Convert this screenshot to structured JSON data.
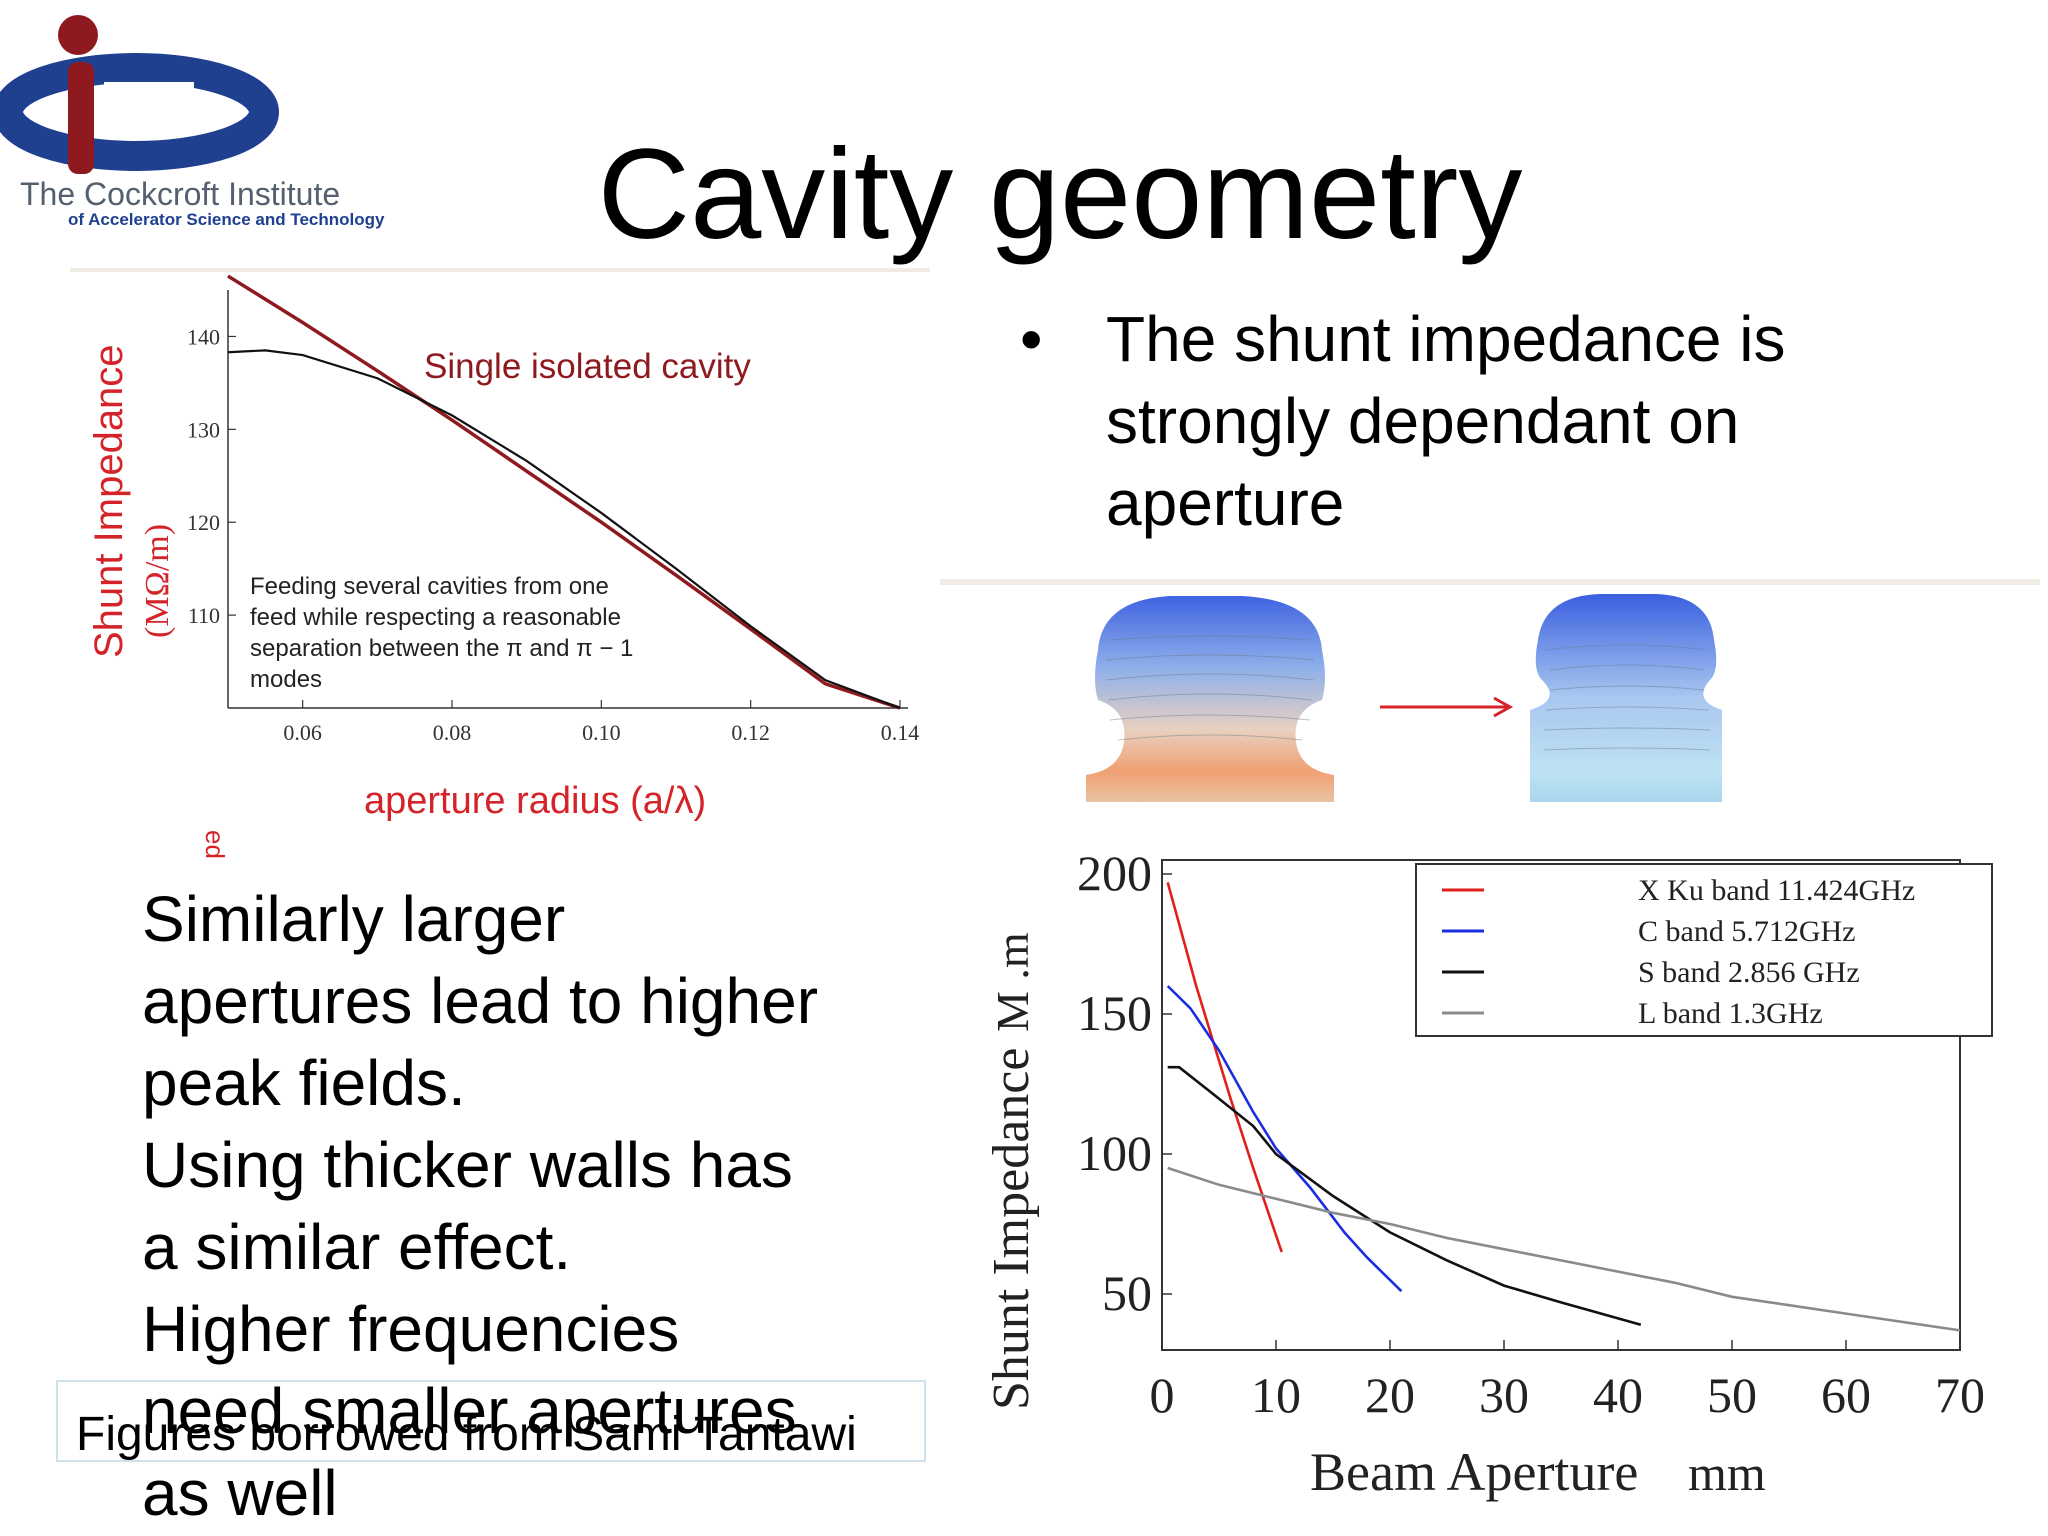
{
  "slide": {
    "title": "Cavity geometry",
    "bullet": "The shunt impedance is strongly dependant on aperture",
    "left_text_lines": [
      "Similarly larger",
      "apertures lead to higher",
      "peak fields.",
      "Using thicker walls has",
      "a similar effect.",
      "Higher frequencies",
      "need smaller apertures",
      "as well"
    ],
    "caption": "Figures borrowed from Sami Tantawi",
    "stray_fragment": "ed"
  },
  "logo": {
    "name": "The Cockcroft Institute",
    "subtitle": "of Accelerator Science and Technology"
  },
  "colors": {
    "accent_red": "#d4242a",
    "logo_blue": "#1f3f8f",
    "logo_red": "#8e1a1f",
    "axis_red": "#d4242a"
  },
  "diagram": {
    "arrow_icon": "right-arrow"
  },
  "chart_data": [
    {
      "type": "line",
      "xlabel": "aperture radius (a/λ)",
      "ylabel": "Shunt Impedance",
      "ylabel_unit": "(MΩ/m)",
      "xlim": [
        0.05,
        0.14
      ],
      "ylim": [
        100,
        145
      ],
      "x_ticks": [
        "0.06",
        "0.08",
        "0.10",
        "0.12",
        "0.14"
      ],
      "y_ticks": [
        "110",
        "120",
        "130",
        "140"
      ],
      "annotations": [
        "Single isolated cavity",
        "Feeding several cavities from one",
        "feed while respecting a reasonable",
        "separation between the π and π − 1",
        "modes"
      ],
      "series": [
        {
          "color": "#8e1a1f",
          "x": [
            0.05,
            0.06,
            0.07,
            0.08,
            0.09,
            0.1,
            0.11,
            0.12,
            0.13,
            0.14
          ],
          "y": [
            146.5,
            141.5,
            136.3,
            131,
            125.5,
            120,
            114.3,
            108.5,
            102.6,
            100
          ]
        },
        {
          "color": "#111111",
          "x": [
            0.05,
            0.055,
            0.06,
            0.07,
            0.08,
            0.09,
            0.1,
            0.11,
            0.12,
            0.13,
            0.14
          ],
          "y": [
            138.3,
            138.5,
            138,
            135.5,
            131.5,
            126.6,
            121,
            115,
            108.8,
            103,
            100
          ]
        }
      ]
    },
    {
      "type": "line",
      "xlabel": "Beam Aperture",
      "xlabel_unit": "mm",
      "ylabel": "Shunt Impedance",
      "ylabel_unit": "M  .m",
      "xlim": [
        0,
        70
      ],
      "ylim": [
        30,
        205
      ],
      "x_ticks": [
        "0",
        "10",
        "20",
        "30",
        "40",
        "50",
        "60",
        "70"
      ],
      "y_ticks": [
        "50",
        "100",
        "150",
        "200"
      ],
      "legend_position": "top-right",
      "series": [
        {
          "name": "X Ku  band 11.424GHz",
          "color": "#e0201c",
          "x": [
            0.5,
            3,
            6,
            8,
            10.5
          ],
          "y": [
            197,
            160,
            120,
            95,
            65
          ]
        },
        {
          "name": "C  band 5.712GHz",
          "color": "#1a2ee0",
          "x": [
            0.5,
            2.5,
            5,
            8,
            10,
            13,
            16,
            18,
            21
          ],
          "y": [
            160,
            152,
            137,
            115,
            102,
            88,
            72,
            63,
            51
          ]
        },
        {
          "name": "S  band 2.856 GHz",
          "color": "#111111",
          "x": [
            0.5,
            1.5,
            4,
            8,
            10,
            15,
            20,
            25,
            30,
            35,
            42
          ],
          "y": [
            131,
            131,
            123,
            110,
            100,
            85,
            72,
            62,
            53,
            47,
            39
          ]
        },
        {
          "name": "L  band 1.3GHz",
          "color": "#8a8a8a",
          "x": [
            0.5,
            5,
            10,
            15,
            20,
            25,
            30,
            35,
            40,
            45,
            50,
            55,
            60,
            65,
            70
          ],
          "y": [
            95,
            89,
            84,
            79,
            75,
            70,
            66,
            62,
            58,
            54,
            49,
            46,
            43,
            40,
            37
          ]
        }
      ]
    }
  ]
}
